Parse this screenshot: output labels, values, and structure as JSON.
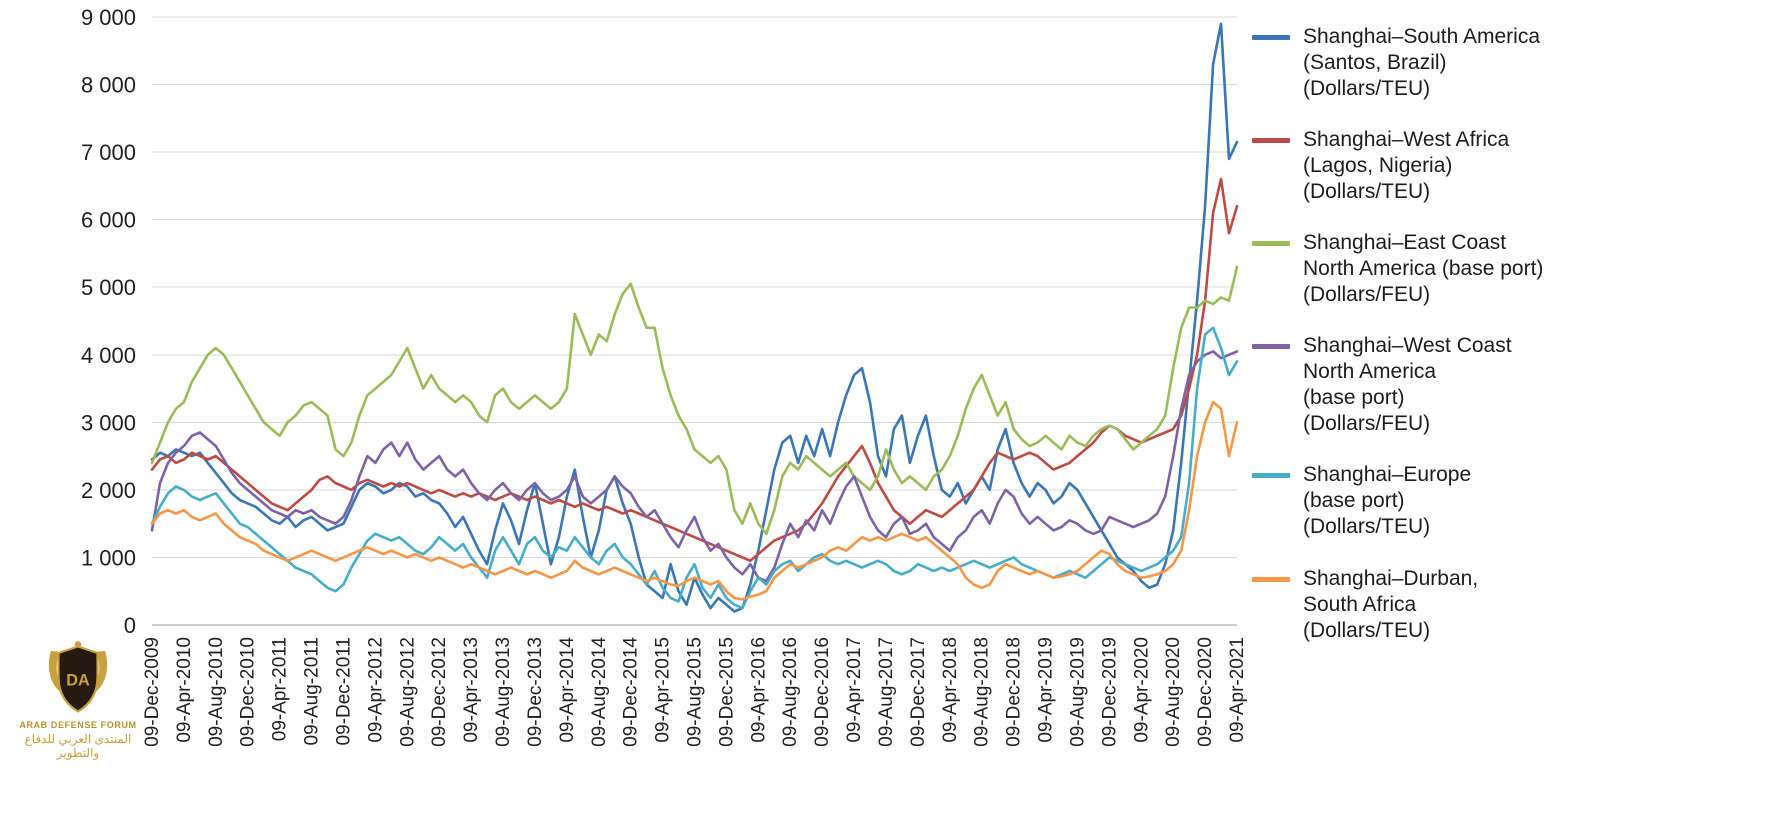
{
  "chart_data": {
    "type": "line",
    "title": "",
    "xlabel": "",
    "ylabel": "",
    "ylim": [
      0,
      9000
    ],
    "grid": "horizontal",
    "legend_position": "right",
    "y_ticks": [
      {
        "value": 0,
        "label": "0"
      },
      {
        "value": 1000,
        "label": "1 000"
      },
      {
        "value": 2000,
        "label": "2 000"
      },
      {
        "value": 3000,
        "label": "3 000"
      },
      {
        "value": 4000,
        "label": "4 000"
      },
      {
        "value": 5000,
        "label": "5 000"
      },
      {
        "value": 6000,
        "label": "6 000"
      },
      {
        "value": 7000,
        "label": "7 000"
      },
      {
        "value": 8000,
        "label": "8 000"
      },
      {
        "value": 9000,
        "label": "9 000"
      }
    ],
    "x_ticks": [
      "09-Dec-2009",
      "09-Apr-2010",
      "09-Aug-2010",
      "09-Dec-2010",
      "09-Apr-2011",
      "09-Aug-2011",
      "09-Dec-2011",
      "09-Apr-2012",
      "09-Aug-2012",
      "09-Dec-2012",
      "09-Apr-2013",
      "09-Aug-2013",
      "09-Dec-2013",
      "09-Apr-2014",
      "09-Aug-2014",
      "09-Dec-2014",
      "09-Apr-2015",
      "09-Aug-2015",
      "09-Dec-2015",
      "09-Apr-2016",
      "09-Aug-2016",
      "09-Dec-2016",
      "09-Apr-2017",
      "09-Aug-2017",
      "09-Dec-2017",
      "09-Apr-2018",
      "09-Aug-2018",
      "09-Dec-2018",
      "09-Apr-2019",
      "09-Aug-2019",
      "09-Dec-2019",
      "09-Apr-2020",
      "09-Aug-2020",
      "09-Dec-2020",
      "09-Apr-2021"
    ],
    "x_range": [
      "09-Dec-2009",
      "09-Apr-2021"
    ],
    "series": [
      {
        "id": "shanghai-south-america",
        "label": "Shanghai–South America\n(Santos, Brazil)\n(Dollars/TEU)",
        "color": "#3a76b6",
        "values": [
          2450,
          2550,
          2500,
          2600,
          2550,
          2500,
          2550,
          2400,
          2250,
          2100,
          1950,
          1850,
          1800,
          1750,
          1650,
          1550,
          1500,
          1600,
          1450,
          1550,
          1600,
          1500,
          1400,
          1450,
          1500,
          1750,
          2000,
          2100,
          2050,
          1950,
          2000,
          2100,
          2050,
          1900,
          1950,
          1850,
          1800,
          1650,
          1450,
          1600,
          1350,
          1100,
          900,
          1400,
          1800,
          1550,
          1200,
          1700,
          2100,
          1500,
          900,
          1300,
          1900,
          2300,
          1600,
          1000,
          1400,
          2000,
          2200,
          1800,
          1500,
          1000,
          600,
          500,
          400,
          900,
          500,
          300,
          700,
          450,
          250,
          400,
          300,
          200,
          250,
          600,
          1100,
          1700,
          2300,
          2700,
          2800,
          2400,
          2800,
          2500,
          2900,
          2500,
          3000,
          3400,
          3700,
          3800,
          3300,
          2500,
          2200,
          2900,
          3100,
          2400,
          2800,
          3100,
          2500,
          2000,
          1900,
          2100,
          1800,
          2000,
          2200,
          2000,
          2600,
          2900,
          2400,
          2100,
          1900,
          2100,
          2000,
          1800,
          1900,
          2100,
          2000,
          1800,
          1600,
          1400,
          1200,
          1000,
          900,
          800,
          650,
          550,
          600,
          900,
          1400,
          2400,
          3600,
          4800,
          6200,
          8300,
          8900,
          6900,
          7150
        ]
      },
      {
        "id": "shanghai-west-africa",
        "label": "Shanghai–West Africa\n(Lagos, Nigeria)\n(Dollars/TEU)",
        "color": "#bd4b45",
        "values": [
          2300,
          2450,
          2500,
          2400,
          2450,
          2550,
          2500,
          2450,
          2500,
          2400,
          2300,
          2200,
          2100,
          2000,
          1900,
          1800,
          1750,
          1700,
          1800,
          1900,
          2000,
          2150,
          2200,
          2100,
          2050,
          2000,
          2100,
          2150,
          2100,
          2050,
          2100,
          2050,
          2100,
          2050,
          2000,
          1950,
          2000,
          1950,
          1900,
          1950,
          1900,
          1950,
          1900,
          1850,
          1900,
          1950,
          1900,
          1850,
          1900,
          1850,
          1800,
          1850,
          1800,
          1750,
          1800,
          1750,
          1700,
          1750,
          1700,
          1650,
          1700,
          1650,
          1600,
          1550,
          1500,
          1450,
          1400,
          1350,
          1300,
          1250,
          1200,
          1150,
          1100,
          1050,
          1000,
          950,
          1050,
          1150,
          1250,
          1300,
          1350,
          1400,
          1500,
          1650,
          1800,
          2000,
          2200,
          2350,
          2500,
          2650,
          2400,
          2100,
          1900,
          1700,
          1600,
          1500,
          1600,
          1700,
          1650,
          1600,
          1700,
          1800,
          1900,
          2000,
          2200,
          2400,
          2550,
          2500,
          2450,
          2500,
          2550,
          2500,
          2400,
          2300,
          2350,
          2400,
          2500,
          2600,
          2700,
          2850,
          2950,
          2900,
          2800,
          2750,
          2700,
          2750,
          2800,
          2850,
          2900,
          3100,
          3500,
          4000,
          4800,
          6100,
          6600,
          5800,
          6200
        ]
      },
      {
        "id": "shanghai-east-coast-north-america",
        "label": "Shanghai–East Coast\nNorth America (base port)\n(Dollars/FEU)",
        "color": "#9bbb59",
        "values": [
          2400,
          2700,
          3000,
          3200,
          3300,
          3600,
          3800,
          4000,
          4100,
          4000,
          3800,
          3600,
          3400,
          3200,
          3000,
          2900,
          2800,
          3000,
          3100,
          3250,
          3300,
          3200,
          3100,
          2600,
          2500,
          2700,
          3100,
          3400,
          3500,
          3600,
          3700,
          3900,
          4100,
          3800,
          3500,
          3700,
          3500,
          3400,
          3300,
          3400,
          3300,
          3100,
          3000,
          3400,
          3500,
          3300,
          3200,
          3300,
          3400,
          3300,
          3200,
          3300,
          3500,
          4600,
          4300,
          4000,
          4300,
          4200,
          4600,
          4900,
          5050,
          4700,
          4400,
          4400,
          3800,
          3400,
          3100,
          2900,
          2600,
          2500,
          2400,
          2500,
          2300,
          1700,
          1500,
          1800,
          1500,
          1350,
          1700,
          2200,
          2400,
          2300,
          2500,
          2400,
          2300,
          2200,
          2300,
          2400,
          2200,
          2100,
          2000,
          2200,
          2600,
          2300,
          2100,
          2200,
          2100,
          2000,
          2200,
          2300,
          2500,
          2800,
          3200,
          3500,
          3700,
          3400,
          3100,
          3300,
          2900,
          2750,
          2650,
          2700,
          2800,
          2700,
          2600,
          2800,
          2700,
          2650,
          2800,
          2900,
          2950,
          2900,
          2750,
          2600,
          2700,
          2800,
          2900,
          3100,
          3800,
          4400,
          4700,
          4700,
          4800,
          4750,
          4850,
          4800,
          5300
        ]
      },
      {
        "id": "shanghai-west-coast-north-america",
        "label": "Shanghai–West Coast\nNorth America\n(base port)\n(Dollars/FEU)",
        "color": "#7d63a5",
        "values": [
          1400,
          2100,
          2400,
          2550,
          2650,
          2800,
          2850,
          2750,
          2650,
          2450,
          2250,
          2100,
          2000,
          1900,
          1800,
          1700,
          1650,
          1600,
          1700,
          1650,
          1700,
          1600,
          1550,
          1500,
          1600,
          1850,
          2200,
          2500,
          2400,
          2600,
          2700,
          2500,
          2700,
          2450,
          2300,
          2400,
          2500,
          2300,
          2200,
          2300,
          2100,
          1950,
          1850,
          2000,
          2100,
          1950,
          1850,
          2000,
          2100,
          1950,
          1850,
          1900,
          2000,
          2200,
          1900,
          1800,
          1900,
          2000,
          2200,
          2050,
          1950,
          1750,
          1600,
          1700,
          1500,
          1300,
          1150,
          1400,
          1600,
          1300,
          1100,
          1200,
          1000,
          850,
          750,
          900,
          700,
          650,
          850,
          1200,
          1500,
          1300,
          1550,
          1400,
          1700,
          1500,
          1800,
          2050,
          2200,
          1900,
          1600,
          1400,
          1300,
          1500,
          1600,
          1350,
          1400,
          1500,
          1300,
          1200,
          1100,
          1300,
          1400,
          1600,
          1700,
          1500,
          1800,
          2000,
          1900,
          1650,
          1500,
          1600,
          1500,
          1400,
          1450,
          1550,
          1500,
          1400,
          1350,
          1400,
          1600,
          1550,
          1500,
          1450,
          1500,
          1550,
          1650,
          1900,
          2500,
          3200,
          3700,
          3900,
          4000,
          4050,
          3950,
          4000,
          4050
        ]
      },
      {
        "id": "shanghai-europe",
        "label": "Shanghai–Europe\n(base port)\n(Dollars/TEU)",
        "color": "#46adc9",
        "values": [
          1500,
          1750,
          1950,
          2050,
          2000,
          1900,
          1850,
          1900,
          1950,
          1800,
          1650,
          1500,
          1450,
          1350,
          1250,
          1150,
          1050,
          950,
          850,
          800,
          750,
          650,
          550,
          500,
          600,
          850,
          1050,
          1250,
          1350,
          1300,
          1250,
          1300,
          1200,
          1100,
          1050,
          1150,
          1300,
          1200,
          1100,
          1200,
          1000,
          850,
          700,
          1100,
          1300,
          1100,
          900,
          1200,
          1300,
          1100,
          1000,
          1150,
          1100,
          1300,
          1150,
          1000,
          900,
          1100,
          1200,
          1000,
          900,
          750,
          600,
          800,
          550,
          400,
          350,
          700,
          900,
          550,
          400,
          600,
          400,
          300,
          250,
          500,
          700,
          600,
          800,
          900,
          950,
          800,
          900,
          1000,
          1050,
          950,
          900,
          950,
          900,
          850,
          900,
          950,
          900,
          800,
          750,
          800,
          900,
          850,
          800,
          850,
          800,
          850,
          900,
          950,
          900,
          850,
          900,
          950,
          1000,
          900,
          850,
          800,
          750,
          700,
          750,
          800,
          750,
          700,
          800,
          900,
          1000,
          950,
          900,
          850,
          800,
          850,
          900,
          1000,
          1100,
          1300,
          2100,
          3500,
          4300,
          4400,
          4100,
          3700,
          3900
        ]
      },
      {
        "id": "shanghai-durban",
        "label": "Shanghai–Durban,\nSouth Africa\n(Dollars/TEU)",
        "color": "#f79646",
        "values": [
          1500,
          1650,
          1700,
          1650,
          1700,
          1600,
          1550,
          1600,
          1650,
          1500,
          1400,
          1300,
          1250,
          1200,
          1100,
          1050,
          1000,
          950,
          1000,
          1050,
          1100,
          1050,
          1000,
          950,
          1000,
          1050,
          1100,
          1150,
          1100,
          1050,
          1100,
          1050,
          1000,
          1050,
          1000,
          950,
          1000,
          950,
          900,
          850,
          900,
          850,
          800,
          750,
          800,
          850,
          800,
          750,
          800,
          750,
          700,
          750,
          800,
          950,
          850,
          800,
          750,
          800,
          850,
          800,
          750,
          700,
          650,
          700,
          650,
          600,
          580,
          650,
          700,
          650,
          600,
          650,
          500,
          400,
          380,
          420,
          450,
          500,
          700,
          800,
          900,
          850,
          900,
          950,
          1000,
          1100,
          1150,
          1100,
          1200,
          1300,
          1250,
          1300,
          1250,
          1300,
          1350,
          1300,
          1250,
          1300,
          1200,
          1100,
          1000,
          900,
          700,
          600,
          550,
          600,
          800,
          900,
          850,
          800,
          750,
          800,
          750,
          700,
          720,
          750,
          800,
          900,
          1000,
          1100,
          1050,
          900,
          800,
          750,
          700,
          720,
          750,
          800,
          900,
          1100,
          1700,
          2500,
          3000,
          3300,
          3200,
          2500,
          3000
        ]
      }
    ]
  },
  "logo": {
    "title": "ARAB DEFENSE FORUM",
    "arabic": "المنتدى العربي للدفاع والتطوير",
    "monogram": "DA"
  }
}
